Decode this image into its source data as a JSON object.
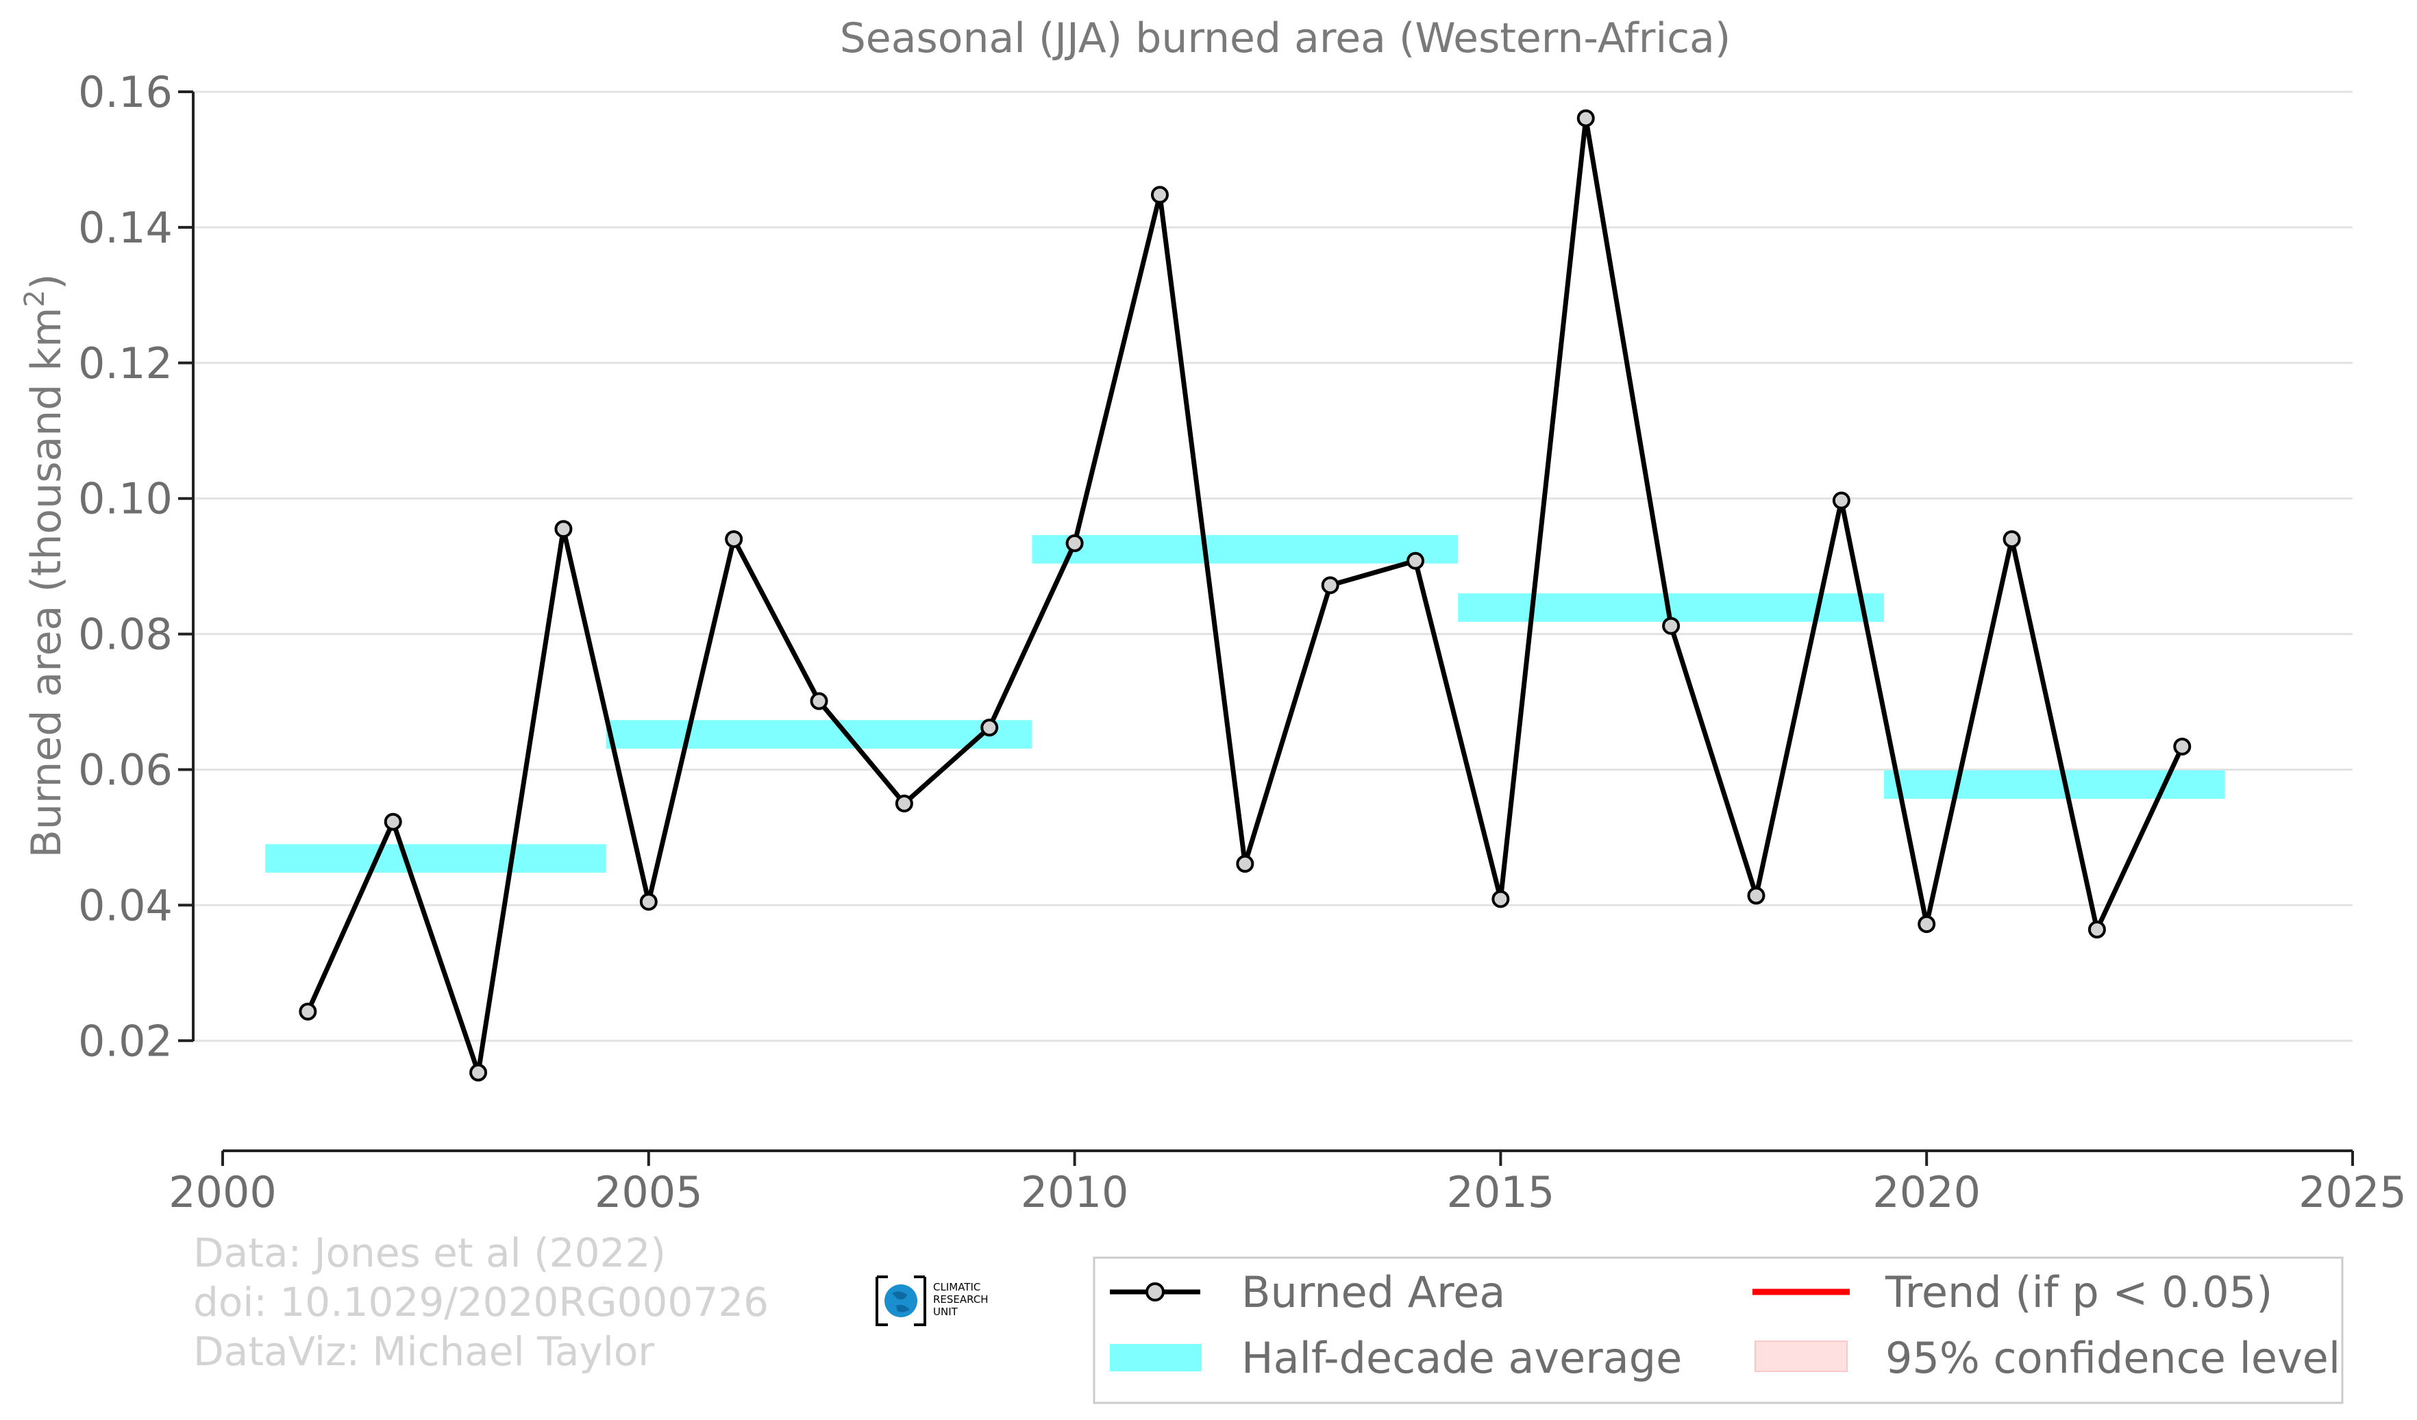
{
  "chart_data": {
    "type": "line",
    "title": "Seasonal (JJA) burned area (Western-Africa)",
    "ylabel": "Burned area (thousand km",
    "ylabel_sup": "2",
    "ylabel_close": ")",
    "xlabel": "",
    "xlim": [
      2000,
      2025
    ],
    "ylim": [
      0.005,
      0.16
    ],
    "x_ticks": [
      2000,
      2005,
      2010,
      2015,
      2020,
      2025
    ],
    "y_ticks": [
      0.02,
      0.04,
      0.06,
      0.08,
      0.1,
      0.12,
      0.14,
      0.16
    ],
    "y_tick_labels": [
      "0.02",
      "0.04",
      "0.06",
      "0.08",
      "0.10",
      "0.12",
      "0.14",
      "0.16"
    ],
    "grid": "horizontal",
    "legend_position": "bottom-right",
    "series": [
      {
        "name": "Burned Area",
        "color": "#000000",
        "marker_fill": "#d3d3d3",
        "x": [
          2001,
          2002,
          2003,
          2004,
          2005,
          2006,
          2007,
          2008,
          2009,
          2010,
          2011,
          2012,
          2013,
          2014,
          2015,
          2016,
          2017,
          2018,
          2019,
          2020,
          2021,
          2022,
          2023
        ],
        "y": [
          0.0243,
          0.0523,
          0.0153,
          0.0955,
          0.0405,
          0.094,
          0.0701,
          0.055,
          0.0662,
          0.0934,
          0.1448,
          0.0461,
          0.0872,
          0.0908,
          0.0409,
          0.1561,
          0.0812,
          0.0414,
          0.0997,
          0.0372,
          0.094,
          0.0364,
          0.0634
        ]
      }
    ],
    "half_decade_average": {
      "name": "Half-decade average",
      "color": "#7fffff",
      "segments": [
        {
          "x_start": 2000.5,
          "x_end": 2004.5,
          "y": 0.0469
        },
        {
          "x_start": 2004.5,
          "x_end": 2009.5,
          "y": 0.0652
        },
        {
          "x_start": 2009.5,
          "x_end": 2014.5,
          "y": 0.0925
        },
        {
          "x_start": 2014.5,
          "x_end": 2019.5,
          "y": 0.0839
        },
        {
          "x_start": 2019.5,
          "x_end": 2023.5,
          "y": 0.0578
        }
      ]
    },
    "legend": [
      {
        "label": "Burned Area",
        "kind": "line-marker",
        "color": "#000000"
      },
      {
        "label": "Trend (if p < 0.05)",
        "kind": "line",
        "color": "#ff0000"
      },
      {
        "label": "Half-decade average",
        "kind": "band",
        "color": "#7fffff"
      },
      {
        "label": "95% confidence level",
        "kind": "band",
        "color": "#ffe0e0"
      }
    ]
  },
  "credits": {
    "line1": "Data: Jones et al (2022)",
    "line2": "doi: 10.1029/2020RG000726",
    "line3": "DataViz: Michael Taylor"
  },
  "logo": {
    "line1": "CLIMATIC",
    "line2": "RESEARCH",
    "line3": "UNIT"
  }
}
